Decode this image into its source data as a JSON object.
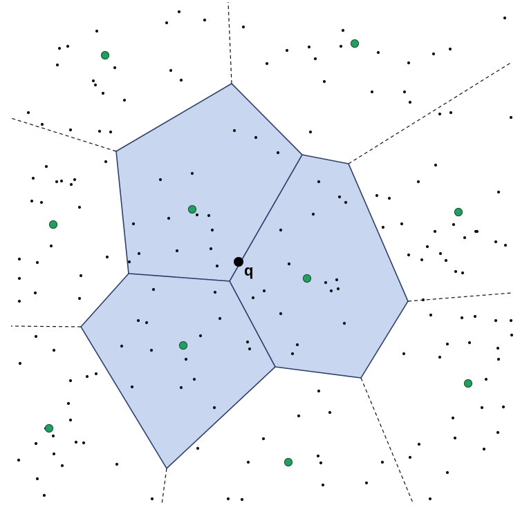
{
  "query_label": "q",
  "colors": {
    "cell_fill": "#c9d6ef",
    "cell_stroke": "#2d3f6b",
    "site_fill": "#1fa060",
    "dot": "#111111"
  }
}
